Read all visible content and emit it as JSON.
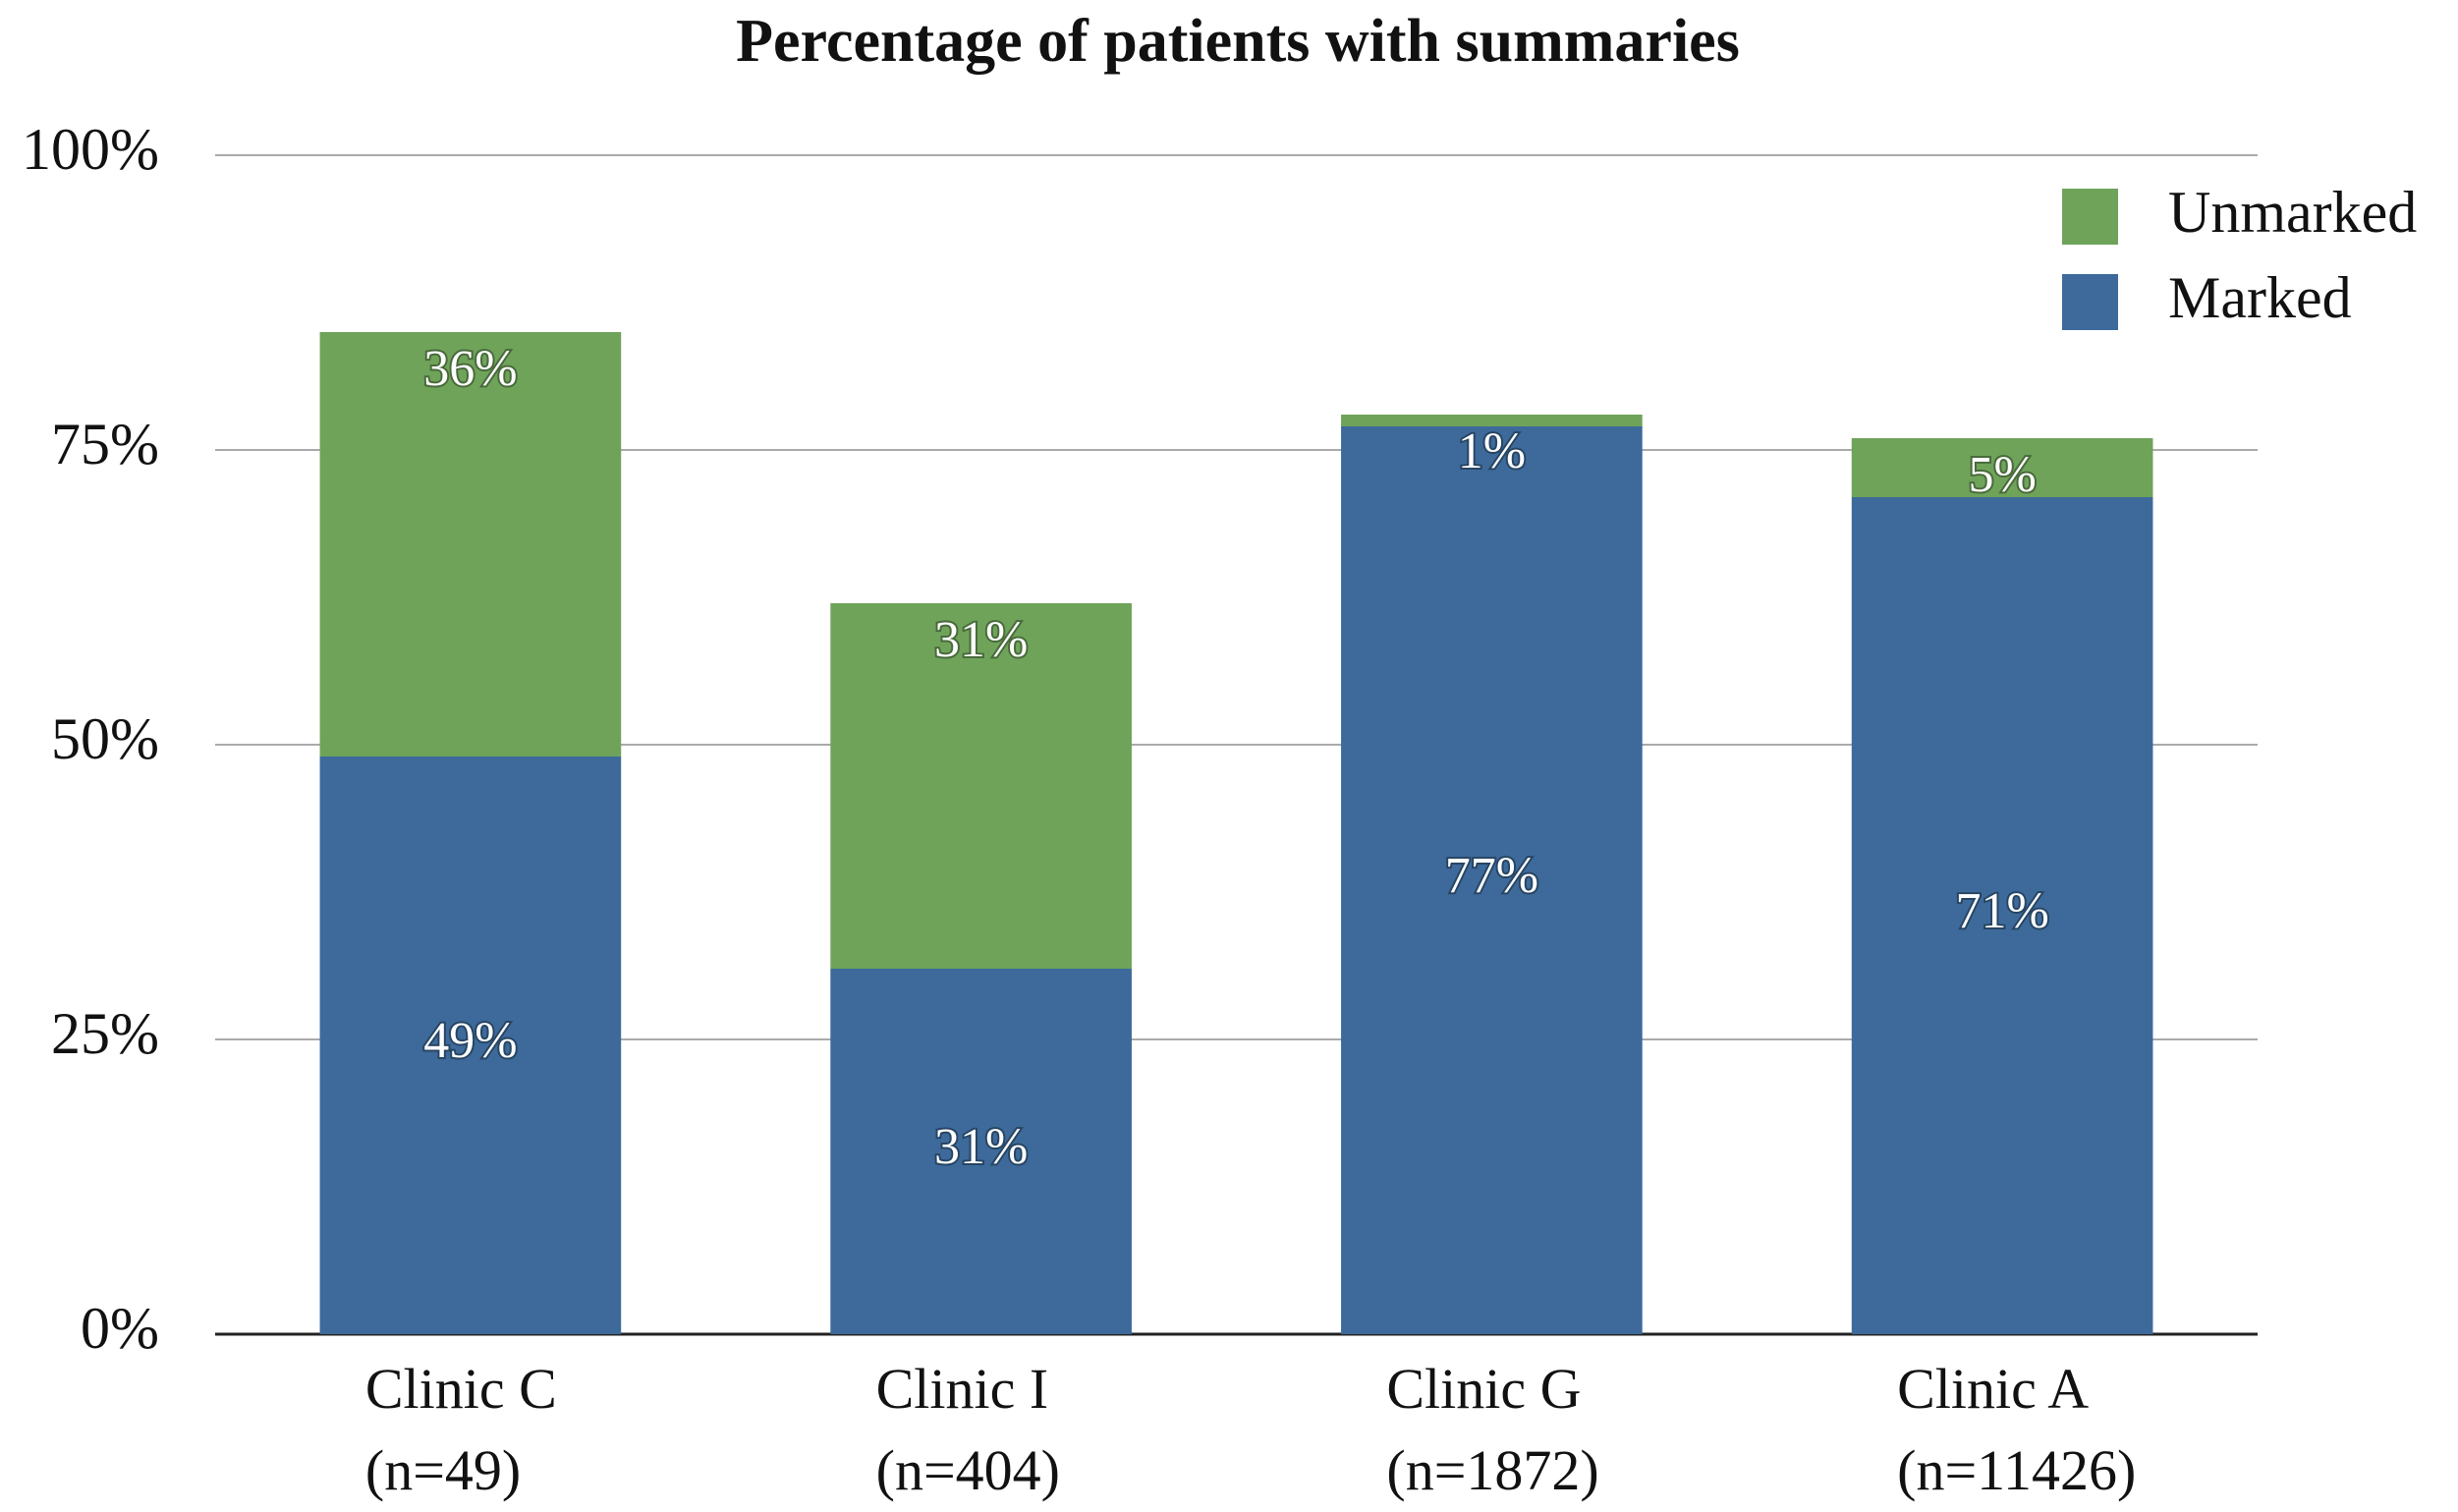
{
  "chart_data": {
    "type": "stacked_bar",
    "title": "Percentage of patients with summaries",
    "categories": [
      [
        "Clinic C",
        "(n=49)"
      ],
      [
        "Clinic I",
        "(n=404)"
      ],
      [
        "Clinic G",
        "(n=1872)"
      ],
      [
        "Clinic A",
        "(n=11426)"
      ]
    ],
    "series": [
      {
        "name": "Marked",
        "color": "#3d6a9a",
        "values": [
          49,
          31,
          77,
          71
        ],
        "value_labels": [
          "49%",
          "31%",
          "77%",
          "71%"
        ]
      },
      {
        "name": "Unmarked",
        "color": "#6fa35a",
        "values": [
          36,
          31,
          1,
          5
        ],
        "value_labels": [
          "36%",
          "31%",
          "1%",
          "5%"
        ]
      }
    ],
    "ylim": [
      0,
      100
    ],
    "yticks": [
      {
        "value": 0,
        "label": "0%"
      },
      {
        "value": 25,
        "label": "25%"
      },
      {
        "value": 50,
        "label": "50%"
      },
      {
        "value": 75,
        "label": "75%"
      },
      {
        "value": 100,
        "label": "100%"
      }
    ],
    "grid": true,
    "legend": "upper right"
  }
}
